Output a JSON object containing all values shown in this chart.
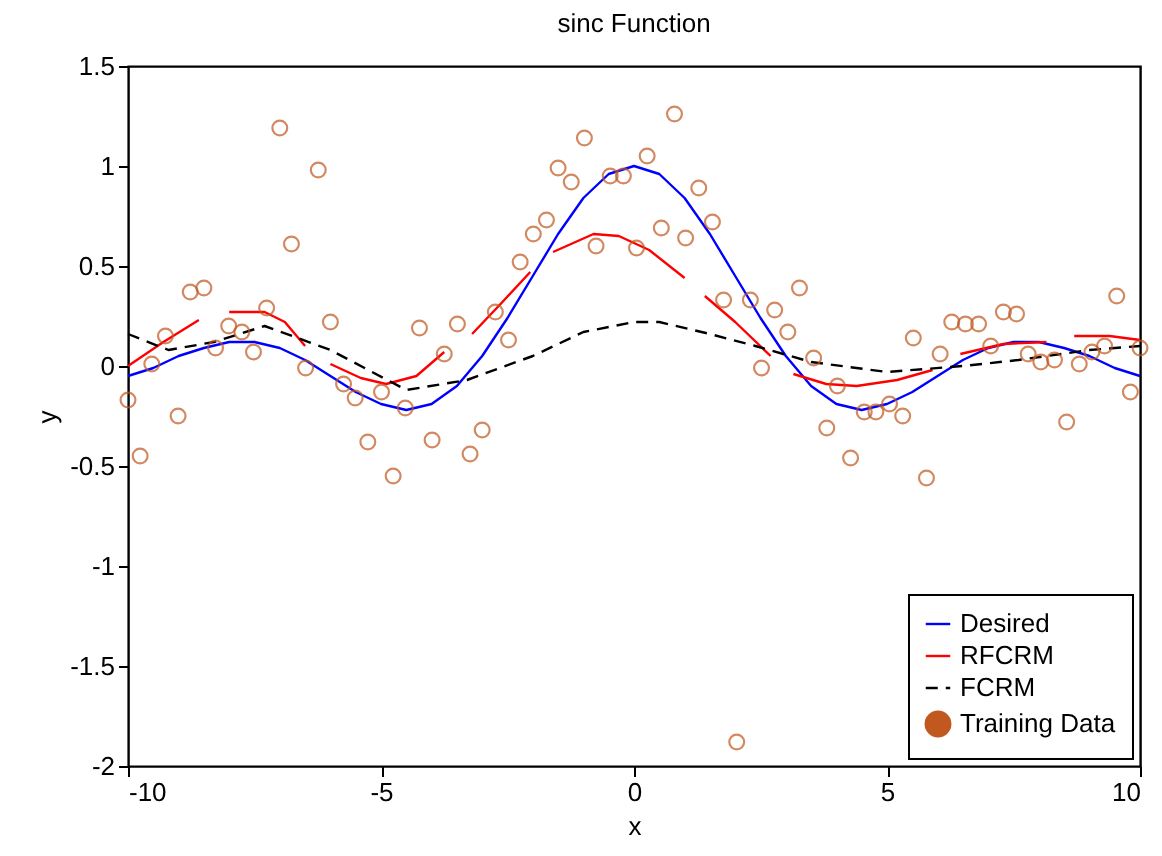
{
  "chart_data": {
    "type": "line",
    "title": "sinc Function",
    "xlabel": "x",
    "ylabel": "y",
    "xlim": [
      -10,
      10
    ],
    "xticks": [
      -10,
      -5,
      0,
      5,
      10
    ],
    "ylim": [
      -2,
      1.5
    ],
    "yticks": [
      -2,
      -1.5,
      -1,
      -0.5,
      0,
      0.5,
      1,
      1.5
    ],
    "grid": false,
    "legend": "bottom right",
    "marker": "none",
    "series": [
      {
        "name": "Desired",
        "color": "#0000ff",
        "line_style": "solid",
        "x": [
          -10,
          -9.5,
          -9,
          -8.5,
          -8,
          -7.5,
          -7,
          -6.5,
          -6,
          -5.5,
          -5,
          -4.5,
          -4,
          -3.5,
          -3,
          -2.5,
          -2,
          -1.5,
          -1,
          -0.5,
          0,
          0.5,
          1,
          1.5,
          2,
          2.5,
          3,
          3.5,
          4,
          4.5,
          5,
          5.5,
          6,
          6.5,
          7,
          7.5,
          8,
          8.5,
          9,
          9.5,
          10
        ],
        "values": [
          -0.05,
          -0.01,
          0.05,
          0.09,
          0.12,
          0.12,
          0.09,
          0.03,
          -0.05,
          -0.13,
          -0.19,
          -0.22,
          -0.19,
          -0.1,
          0.05,
          0.24,
          0.45,
          0.66,
          0.84,
          0.96,
          1,
          0.96,
          0.84,
          0.66,
          0.45,
          0.24,
          0.05,
          -0.1,
          -0.19,
          -0.22,
          -0.19,
          -0.13,
          -0.05,
          0.03,
          0.09,
          0.12,
          0.12,
          0.09,
          0.05,
          -0.01,
          -0.05
        ]
      },
      {
        "name": "RFCRM",
        "color": "#ff0000",
        "line_style": "solid",
        "x": [
          -10,
          -9.3,
          -8.6,
          -8.3,
          -8,
          -7.3,
          -6.9,
          -6.5,
          -6.2,
          -6,
          -5.4,
          -4.9,
          -4.3,
          -3.75,
          -3.5,
          -3.2,
          -2.6,
          -2.05,
          -1.8,
          -1.6,
          -0.8,
          -0.3,
          0.3,
          1,
          1.2,
          1.4,
          2,
          2.7,
          2.9,
          3.15,
          3.8,
          4.4,
          5.2,
          5.9,
          6.2,
          6.45,
          7.3,
          8.15,
          8.4,
          8.7,
          9.4,
          10
        ],
        "values": [
          0,
          0.12,
          0.23,
          null,
          0.27,
          0.27,
          0.22,
          0.1,
          null,
          0.01,
          -0.06,
          -0.09,
          -0.05,
          0.07,
          null,
          0.16,
          0.32,
          0.47,
          null,
          0.57,
          0.66,
          0.65,
          0.58,
          0.44,
          null,
          0.35,
          0.22,
          0.05,
          null,
          -0.04,
          -0.09,
          -0.1,
          -0.07,
          -0.02,
          null,
          0.06,
          0.11,
          0.12,
          null,
          0.15,
          0.15,
          0.13
        ]
      },
      {
        "name": "FCRM",
        "color": "#000000",
        "line_style": "dashed",
        "x": [
          -10,
          -9.2,
          -8.3,
          -7.3,
          -6,
          -4.5,
          -3.3,
          -2,
          -1,
          0,
          0.5,
          1.5,
          2.4,
          3.5,
          5,
          6.5,
          7.6,
          9,
          10
        ],
        "values": [
          0.16,
          0.08,
          0.12,
          0.2,
          0.08,
          -0.12,
          -0.07,
          0.05,
          0.17,
          0.22,
          0.22,
          0.16,
          0.1,
          0.02,
          -0.03,
          0,
          0.03,
          0.08,
          0.1
        ]
      },
      {
        "name": "Training Data",
        "color": "#c0581f",
        "type": "scatter",
        "marker": "circle",
        "x": [
          -10,
          -9.76,
          -9.53,
          -9.26,
          -9.01,
          -8.77,
          -8.5,
          -8.27,
          -8.01,
          -7.75,
          -7.52,
          -7.26,
          -7,
          -6.77,
          -6.49,
          -6.24,
          -6,
          -5.74,
          -5.51,
          -5.26,
          -4.99,
          -4.76,
          -4.52,
          -4.24,
          -3.99,
          -3.75,
          -3.49,
          -3.24,
          -3,
          -2.74,
          -2.48,
          -2.25,
          -1.99,
          -1.73,
          -1.5,
          -1.24,
          -0.98,
          -0.75,
          -0.47,
          -0.21,
          0.05,
          0.26,
          0.54,
          0.8,
          1.02,
          1.28,
          1.55,
          1.77,
          2.03,
          2.3,
          2.52,
          2.78,
          3.04,
          3.27,
          3.55,
          3.81,
          4.02,
          4.28,
          4.55,
          4.78,
          5.05,
          5.31,
          5.52,
          5.78,
          6.05,
          6.28,
          6.55,
          6.81,
          7.05,
          7.3,
          7.56,
          7.79,
          8.04,
          8.31,
          8.55,
          8.8,
          9.05,
          9.3,
          9.54,
          9.81,
          10
        ],
        "values": [
          -0.17,
          -0.45,
          0.01,
          0.15,
          -0.25,
          0.37,
          0.39,
          0.09,
          0.2,
          0.17,
          0.07,
          0.29,
          1.19,
          0.61,
          -0.01,
          0.98,
          0.22,
          -0.09,
          -0.16,
          -0.38,
          -0.13,
          -0.55,
          -0.21,
          0.19,
          -0.37,
          0.06,
          0.21,
          -0.44,
          -0.32,
          0.27,
          0.13,
          0.52,
          0.66,
          0.73,
          0.99,
          0.92,
          1.14,
          0.6,
          0.95,
          0.95,
          0.59,
          1.05,
          0.69,
          1.26,
          0.64,
          0.89,
          0.72,
          0.33,
          -1.88,
          0.33,
          -0.01,
          0.28,
          0.17,
          0.39,
          0.04,
          -0.31,
          -0.1,
          -0.46,
          -0.23,
          -0.23,
          -0.19,
          -0.25,
          0.14,
          -0.56,
          0.06,
          0.22,
          0.21,
          0.21,
          0.1,
          0.27,
          0.26,
          0.06,
          0.02,
          0.03,
          -0.28,
          0.01,
          0.07,
          0.1,
          0.35,
          -0.13,
          0.09
        ]
      }
    ]
  }
}
